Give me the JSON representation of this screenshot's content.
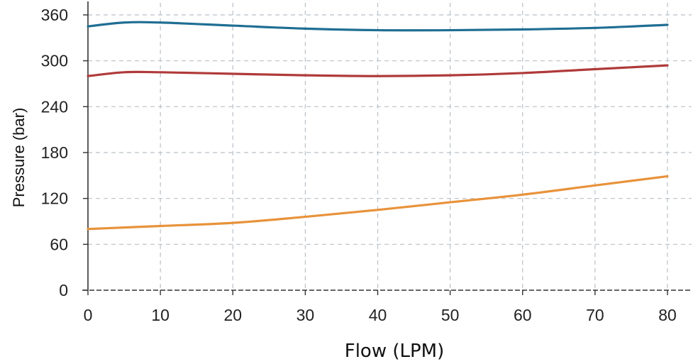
{
  "chart_data": {
    "type": "line",
    "title": "",
    "xlabel": "Flow (LPM)",
    "ylabel": "Pressure (bar)",
    "xlim": [
      0,
      80
    ],
    "ylim": [
      0,
      360
    ],
    "x_ticks": [
      0,
      10,
      20,
      30,
      40,
      50,
      60,
      70,
      80
    ],
    "y_ticks": [
      0,
      60,
      120,
      180,
      240,
      300,
      360
    ],
    "grid": true,
    "grid_style": "dashed",
    "legend": "none",
    "series": [
      {
        "color": "#1f6e93",
        "x": [
          0,
          5,
          10,
          20,
          30,
          40,
          50,
          60,
          70,
          80
        ],
        "y": [
          345,
          350,
          350,
          346,
          342,
          340,
          340,
          341,
          343,
          347
        ]
      },
      {
        "color": "#b03a3a",
        "x": [
          0,
          5,
          10,
          20,
          30,
          40,
          50,
          60,
          70,
          80
        ],
        "y": [
          280,
          285,
          285,
          283,
          281,
          280,
          281,
          284,
          289,
          294
        ]
      },
      {
        "color": "#e8923a",
        "x": [
          0,
          5,
          10,
          20,
          30,
          40,
          50,
          60,
          70,
          80
        ],
        "y": [
          80,
          82,
          84,
          88,
          96,
          105,
          115,
          125,
          137,
          149
        ]
      }
    ]
  }
}
